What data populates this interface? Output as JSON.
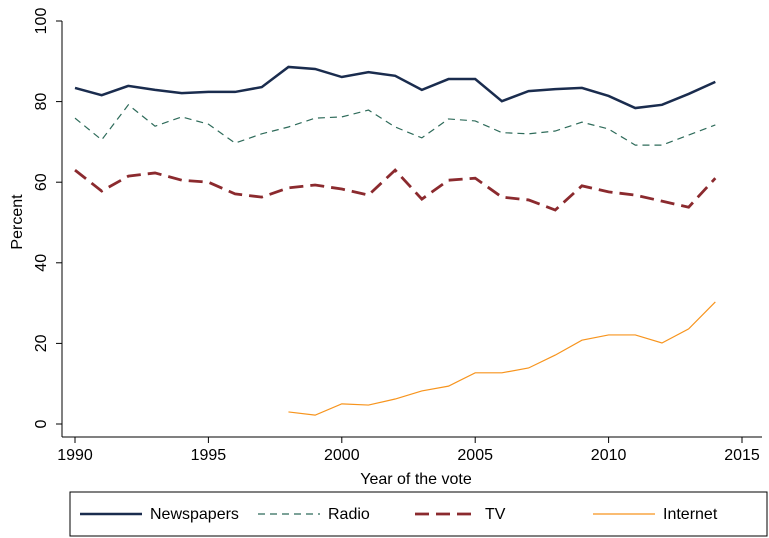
{
  "chart_data": {
    "type": "line",
    "x_label": "Year of the vote",
    "y_label": "Percent",
    "x": [
      1990,
      1991,
      1992,
      1993,
      1994,
      1995,
      1996,
      1997,
      1998,
      1999,
      2000,
      2001,
      2002,
      2003,
      2004,
      2005,
      2006,
      2007,
      2008,
      2009,
      2010,
      2011,
      2012,
      2013,
      2014
    ],
    "series": [
      {
        "name": "Newspapers",
        "color": "#1a2c4e",
        "values": [
          83.4,
          81.6,
          83.9,
          82.9,
          82.1,
          82.4,
          82.4,
          83.6,
          88.6,
          88.1,
          86.1,
          87.3,
          86.4,
          82.9,
          85.6,
          85.6,
          80.1,
          82.6,
          83.1,
          83.4,
          81.4,
          78.4,
          79.2,
          81.9,
          84.9
        ]
      },
      {
        "name": "Radio",
        "color": "#2e6b5a",
        "values": [
          75.9,
          70.5,
          79.2,
          73.9,
          76.2,
          74.4,
          69.7,
          72,
          73.7,
          75.9,
          76.2,
          77.9,
          73.7,
          71,
          75.7,
          75.2,
          72.3,
          72,
          72.7,
          74.9,
          73.2,
          69.2,
          69.2,
          71.7,
          74.2
        ]
      },
      {
        "name": "TV",
        "color": "#8b2a2e",
        "values": [
          63,
          57.8,
          61.5,
          62.3,
          60.5,
          60,
          57.1,
          56.3,
          58.6,
          59.3,
          58.3,
          56.8,
          63,
          55.8,
          60.5,
          61,
          56.3,
          55.6,
          53.1,
          59.1,
          57.6,
          56.8,
          55.3,
          53.8,
          61
        ]
      },
      {
        "name": "Internet",
        "color": "#f7941d",
        "values": [
          null,
          null,
          null,
          null,
          null,
          null,
          null,
          null,
          3,
          2.2,
          5,
          4.7,
          6.2,
          8.2,
          9.4,
          12.7,
          12.7,
          13.9,
          17.1,
          20.8,
          22.1,
          22.1,
          20.1,
          23.6,
          30.3
        ]
      }
    ],
    "xlim": [
      1990,
      2015
    ],
    "xticks": [
      1990,
      1995,
      2000,
      2005,
      2010,
      2015
    ],
    "ylim": [
      0,
      100
    ],
    "yticks": [
      0,
      20,
      40,
      60,
      80,
      100
    ],
    "legend": "bottom"
  }
}
